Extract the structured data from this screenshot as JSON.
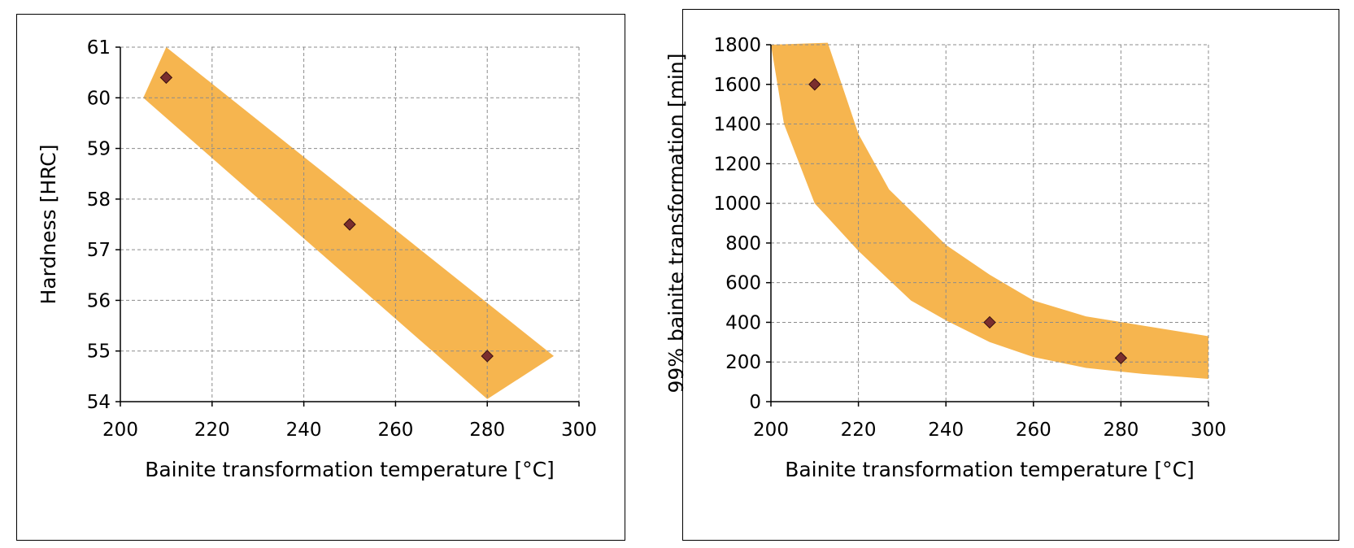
{
  "colors": {
    "band": "#f5ad3c",
    "marker": "#7a2e2e",
    "grid": "#8c8c8c",
    "axis": "#000000"
  },
  "chart_data": [
    {
      "type": "scatter",
      "xlabel": "Bainite transformation temperature [°C]",
      "ylabel": "Hardness [HRC]",
      "xlim": [
        200,
        300
      ],
      "ylim": [
        54,
        61
      ],
      "xticks": [
        "200",
        "220",
        "240",
        "260",
        "280",
        "300"
      ],
      "yticks": [
        "54",
        "55",
        "56",
        "57",
        "58",
        "59",
        "60",
        "61"
      ],
      "grid": true,
      "series": [
        {
          "x": [
            210,
            250,
            280
          ],
          "y": [
            60.4,
            57.5,
            54.9
          ]
        }
      ],
      "band": [
        [
          205,
          60
        ],
        [
          210,
          61
        ],
        [
          294.5,
          54.9
        ],
        [
          280,
          54.05
        ],
        [
          205,
          60
        ]
      ]
    },
    {
      "type": "scatter",
      "xlabel": "Bainite transformation temperature [°C]",
      "ylabel": "99% bainite transformation [min]",
      "xlim": [
        200,
        300
      ],
      "ylim": [
        0,
        1800
      ],
      "xticks": [
        "200",
        "220",
        "240",
        "260",
        "280",
        "300"
      ],
      "yticks": [
        "0",
        "200",
        "400",
        "600",
        "800",
        "1000",
        "1200",
        "1400",
        "1600",
        "1800"
      ],
      "grid": true,
      "series": [
        {
          "x": [
            210,
            250,
            280
          ],
          "y": [
            1600,
            400,
            220
          ]
        }
      ],
      "band": [
        [
          200,
          1800
        ],
        [
          213,
          1810
        ],
        [
          220,
          1350
        ],
        [
          227,
          1070
        ],
        [
          240,
          790
        ],
        [
          250,
          640
        ],
        [
          260,
          510
        ],
        [
          272,
          430
        ],
        [
          300,
          330
        ],
        [
          300,
          115
        ],
        [
          285,
          140
        ],
        [
          272,
          170
        ],
        [
          260,
          225
        ],
        [
          250,
          300
        ],
        [
          240,
          410
        ],
        [
          232,
          510
        ],
        [
          220,
          760
        ],
        [
          210,
          1000
        ],
        [
          203,
          1400
        ],
        [
          200,
          1800
        ]
      ]
    }
  ]
}
